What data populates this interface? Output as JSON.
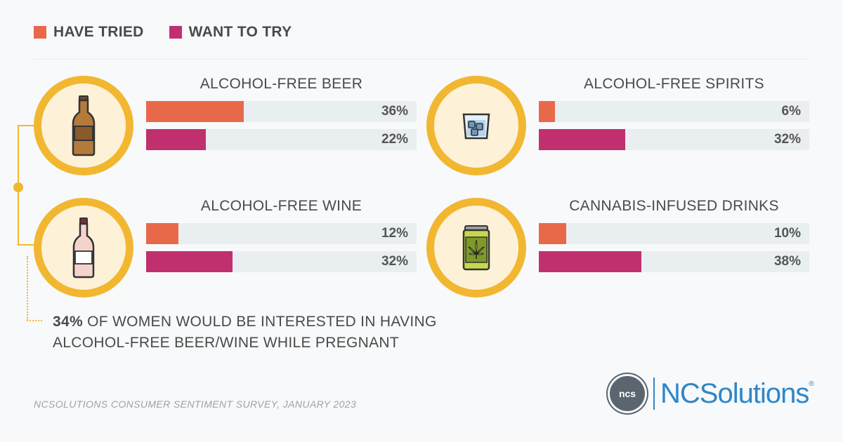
{
  "colors": {
    "tried": "#e8694a",
    "want": "#c1306e",
    "ring": "#f2b731"
  },
  "legend": [
    {
      "label": "HAVE TRIED",
      "color": "#e8694a"
    },
    {
      "label": "WANT TO TRY",
      "color": "#c1306e"
    }
  ],
  "chart_data": {
    "type": "bar",
    "orientation": "horizontal",
    "xlim": [
      0,
      100
    ],
    "series": [
      {
        "name": "HAVE TRIED",
        "color": "#e8694a"
      },
      {
        "name": "WANT TO TRY",
        "color": "#c1306e"
      }
    ],
    "panels": [
      {
        "title": "ALCOHOL-FREE BEER",
        "icon": "beer-bottle-icon",
        "tried": 36,
        "tried_label": "36%",
        "want": 22,
        "want_label": "22%"
      },
      {
        "title": "ALCOHOL-FREE SPIRITS",
        "icon": "spirits-glass-icon",
        "tried": 6,
        "tried_label": "6%",
        "want": 32,
        "want_label": "32%"
      },
      {
        "title": "ALCOHOL-FREE WINE",
        "icon": "wine-bottle-icon",
        "tried": 12,
        "tried_label": "12%",
        "want": 32,
        "want_label": "32%"
      },
      {
        "title": "CANNABIS-INFUSED DRINKS",
        "icon": "cannabis-can-icon",
        "tried": 10,
        "tried_label": "10%",
        "want": 38,
        "want_label": "38%"
      }
    ]
  },
  "note": {
    "highlight": "34%",
    "text": " OF WOMEN WOULD BE INTERESTED IN HAVING ALCOHOL-FREE BEER/WINE WHILE PREGNANT"
  },
  "source": "NCSOLUTIONS CONSUMER SENTIMENT SURVEY, JANUARY 2023",
  "logo": {
    "mark": "ncs",
    "text": "NCSolutions",
    "reg": "®"
  }
}
